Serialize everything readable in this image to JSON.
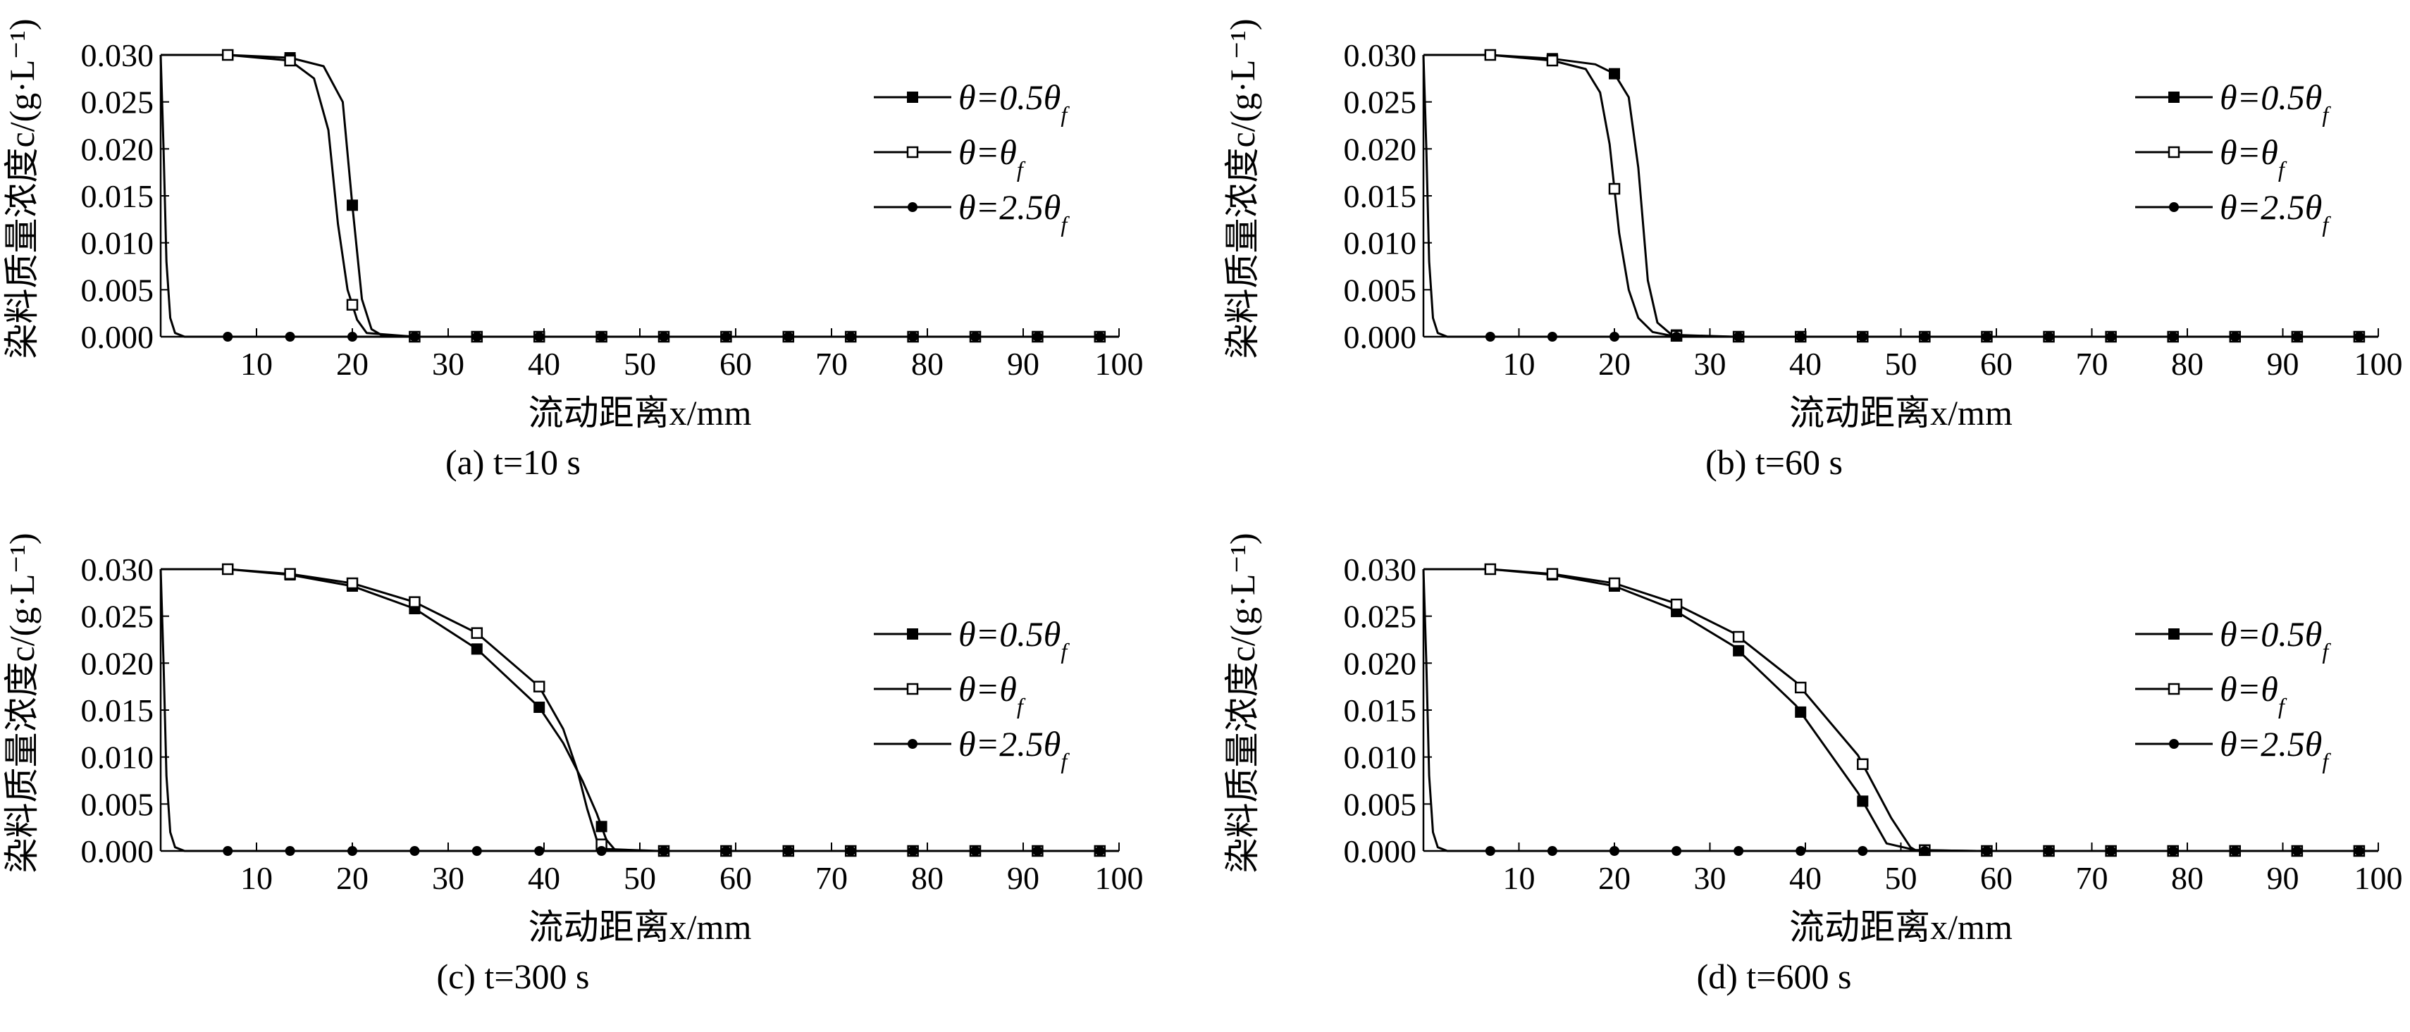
{
  "chart_data": [
    {
      "type": "line",
      "caption": "(a) t=10 s",
      "ylabel": "染料质量浓度c/(g·L⁻¹)",
      "xlabel": "流动距离x/mm",
      "xlim": [
        0,
        100
      ],
      "ylim": [
        0,
        0.03
      ],
      "xticks": [
        "10",
        "20",
        "30",
        "40",
        "50",
        "60",
        "70",
        "80",
        "90",
        "100"
      ],
      "yticks": [
        "0.000",
        "0.005",
        "0.010",
        "0.015",
        "0.020",
        "0.025",
        "0.030"
      ],
      "legend_position": "top-right",
      "series": [
        {
          "name": "θ=0.5θf",
          "marker": "filled-square",
          "x": [
            0,
            0.5,
            7,
            13.5,
            17,
            19,
            20,
            21,
            22,
            23,
            26.5,
            33,
            39.5,
            46,
            52.5,
            59,
            65.5,
            72,
            78.5,
            85,
            91.5,
            98,
            100
          ],
          "y": [
            0.03,
            0.03,
            0.03,
            0.0297,
            0.0288,
            0.025,
            0.014,
            0.004,
            0.0008,
            0.0002,
            0,
            0,
            0,
            0,
            0,
            0,
            0,
            0,
            0,
            0,
            0,
            0,
            0
          ]
        },
        {
          "name": "θ=θf",
          "marker": "open-square",
          "x": [
            0,
            0.5,
            7,
            13.5,
            16,
            17.5,
            18.5,
            19.5,
            20.5,
            21.5,
            26.5,
            33,
            39.5,
            46,
            52.5,
            59,
            65.5,
            72,
            78.5,
            85,
            91.5,
            98,
            100
          ],
          "y": [
            0.03,
            0.03,
            0.03,
            0.0294,
            0.0275,
            0.022,
            0.012,
            0.005,
            0.0018,
            0.0004,
            0,
            0,
            0,
            0,
            0,
            0,
            0,
            0,
            0,
            0,
            0,
            0,
            0
          ]
        },
        {
          "name": "θ=2.5θf",
          "marker": "filled-circle",
          "x": [
            0,
            0.3,
            0.6,
            1.0,
            1.5,
            2.5,
            7,
            13.5,
            20,
            26.5,
            33,
            39.5,
            46,
            52.5,
            59,
            65.5,
            72,
            78.5,
            85,
            91.5,
            98,
            100
          ],
          "y": [
            0.03,
            0.02,
            0.008,
            0.002,
            0.0004,
            0,
            0,
            0,
            0,
            0,
            0,
            0,
            0,
            0,
            0,
            0,
            0,
            0,
            0,
            0,
            0,
            0
          ]
        }
      ]
    },
    {
      "type": "line",
      "caption": "(b) t=60 s",
      "ylabel": "染料质量浓度c/(g·L⁻¹)",
      "xlabel": "流动距离x/mm",
      "xlim": [
        0,
        100
      ],
      "ylim": [
        0,
        0.03
      ],
      "xticks": [
        "10",
        "20",
        "30",
        "40",
        "50",
        "60",
        "70",
        "80",
        "90",
        "100"
      ],
      "yticks": [
        "0.000",
        "0.005",
        "0.010",
        "0.015",
        "0.020",
        "0.025",
        "0.030"
      ],
      "legend_position": "top-right",
      "series": [
        {
          "name": "θ=0.5θf",
          "marker": "filled-square",
          "x": [
            0,
            0.5,
            7,
            13.5,
            18,
            20,
            21.5,
            22.5,
            23.5,
            24.5,
            26,
            32.5,
            39,
            45.5,
            52,
            58.5,
            65,
            71.5,
            78,
            84.5,
            91,
            97.5,
            100
          ],
          "y": [
            0.03,
            0.03,
            0.03,
            0.0296,
            0.029,
            0.028,
            0.0255,
            0.018,
            0.006,
            0.0015,
            0.0002,
            0,
            0,
            0,
            0,
            0,
            0,
            0,
            0,
            0,
            0,
            0,
            0
          ]
        },
        {
          "name": "θ=θf",
          "marker": "open-square",
          "x": [
            0,
            0.5,
            7,
            13.5,
            17,
            18.5,
            19.5,
            20.5,
            21.5,
            22.5,
            24,
            26,
            32.5,
            39,
            45.5,
            52,
            58.5,
            65,
            71.5,
            78,
            84.5,
            91,
            97.5,
            100
          ],
          "y": [
            0.03,
            0.03,
            0.03,
            0.0294,
            0.0285,
            0.026,
            0.0205,
            0.011,
            0.005,
            0.002,
            0.0005,
            0.0001,
            0,
            0,
            0,
            0,
            0,
            0,
            0,
            0,
            0,
            0,
            0,
            0
          ]
        },
        {
          "name": "θ=2.5θf",
          "marker": "filled-circle",
          "x": [
            0,
            0.3,
            0.6,
            1.0,
            1.5,
            2.5,
            7,
            13.5,
            20,
            26.5,
            33,
            39.5,
            46,
            52.5,
            59,
            65.5,
            72,
            78.5,
            85,
            91.5,
            98,
            100
          ],
          "y": [
            0.03,
            0.02,
            0.008,
            0.002,
            0.0004,
            0,
            0,
            0,
            0,
            0,
            0,
            0,
            0,
            0,
            0,
            0,
            0,
            0,
            0,
            0,
            0,
            0
          ]
        }
      ]
    },
    {
      "type": "line",
      "caption": "(c) t=300 s",
      "ylabel": "染料质量浓度c/(g·L⁻¹)",
      "xlabel": "流动距离x/mm",
      "xlim": [
        0,
        100
      ],
      "ylim": [
        0,
        0.03
      ],
      "xticks": [
        "10",
        "20",
        "30",
        "40",
        "50",
        "60",
        "70",
        "80",
        "90",
        "100"
      ],
      "yticks": [
        "0.000",
        "0.005",
        "0.010",
        "0.015",
        "0.020",
        "0.025",
        "0.030"
      ],
      "legend_position": "right",
      "series": [
        {
          "name": "θ=0.5θf",
          "marker": "filled-square",
          "x": [
            0,
            0.5,
            7,
            13.5,
            20,
            26.5,
            33,
            39.5,
            42,
            44,
            45.5,
            46.5,
            47.5,
            52,
            58.5,
            65,
            71.5,
            78,
            84.5,
            91,
            97.5,
            100
          ],
          "y": [
            0.03,
            0.03,
            0.03,
            0.0294,
            0.0282,
            0.0258,
            0.0215,
            0.0153,
            0.0115,
            0.0075,
            0.004,
            0.0012,
            0,
            0,
            0,
            0,
            0,
            0,
            0,
            0,
            0,
            0
          ]
        },
        {
          "name": "θ=θf",
          "marker": "open-square",
          "x": [
            0,
            0.5,
            7,
            13.5,
            20,
            26.5,
            33,
            39.5,
            42,
            43.5,
            44.5,
            45.5,
            46.5,
            52,
            58.5,
            65,
            71.5,
            78,
            84.5,
            91,
            97.5,
            100
          ],
          "y": [
            0.03,
            0.03,
            0.03,
            0.0295,
            0.0285,
            0.0265,
            0.0232,
            0.0175,
            0.013,
            0.0085,
            0.0045,
            0.0012,
            0.0002,
            0,
            0,
            0,
            0,
            0,
            0,
            0,
            0,
            0
          ]
        },
        {
          "name": "θ=2.5θf",
          "marker": "filled-circle",
          "x": [
            0,
            0.3,
            0.6,
            1.0,
            1.5,
            2.5,
            7,
            13.5,
            20,
            26.5,
            33,
            39.5,
            46,
            52.5,
            59,
            65.5,
            72,
            78.5,
            85,
            91.5,
            98,
            100
          ],
          "y": [
            0.03,
            0.02,
            0.008,
            0.002,
            0.0004,
            0,
            0,
            0,
            0,
            0,
            0,
            0,
            0,
            0,
            0,
            0,
            0,
            0,
            0,
            0,
            0,
            0
          ]
        }
      ]
    },
    {
      "type": "line",
      "caption": "(d) t=600 s",
      "ylabel": "染料质量浓度c/(g·L⁻¹)",
      "xlabel": "流动距离x/mm",
      "xlim": [
        0,
        100
      ],
      "ylim": [
        0,
        0.03
      ],
      "xticks": [
        "10",
        "20",
        "30",
        "40",
        "50",
        "60",
        "70",
        "80",
        "90",
        "100"
      ],
      "yticks": [
        "0.000",
        "0.005",
        "0.010",
        "0.015",
        "0.020",
        "0.025",
        "0.030"
      ],
      "legend_position": "right",
      "series": [
        {
          "name": "θ=0.5θf",
          "marker": "filled-square",
          "x": [
            0,
            0.5,
            7,
            13.5,
            20,
            26,
            32.5,
            39,
            45.5,
            48.5,
            51.5,
            58,
            64.5,
            71,
            77.5,
            84,
            90.5,
            97,
            100
          ],
          "y": [
            0.03,
            0.03,
            0.03,
            0.0294,
            0.0282,
            0.0258,
            0.0218,
            0.0155,
            0.0062,
            0.0008,
            0.0001,
            0,
            0,
            0,
            0,
            0,
            0,
            0,
            0
          ]
        },
        {
          "name": "θ=θf",
          "marker": "open-square",
          "x": [
            0,
            0.5,
            7,
            13.5,
            20,
            26,
            32.5,
            39,
            45.5,
            49,
            51,
            51.5,
            58,
            64.5,
            71,
            77.5,
            84,
            90.5,
            97,
            100
          ],
          "y": [
            0.03,
            0.03,
            0.03,
            0.0295,
            0.0285,
            0.0265,
            0.0232,
            0.018,
            0.0102,
            0.0035,
            0.0004,
            0.0001,
            0,
            0,
            0,
            0,
            0,
            0,
            0,
            0
          ]
        },
        {
          "name": "θ=2.5θf",
          "marker": "filled-circle",
          "x": [
            0,
            0.3,
            0.6,
            1.0,
            1.5,
            2.5,
            7,
            13.5,
            20,
            26.5,
            33,
            39.5,
            46,
            52.5,
            59,
            65.5,
            72,
            78.5,
            85,
            91.5,
            98,
            100
          ],
          "y": [
            0.03,
            0.02,
            0.008,
            0.002,
            0.0004,
            0,
            0,
            0,
            0,
            0,
            0,
            0,
            0,
            0,
            0,
            0,
            0,
            0,
            0,
            0,
            0,
            0
          ]
        }
      ]
    }
  ]
}
